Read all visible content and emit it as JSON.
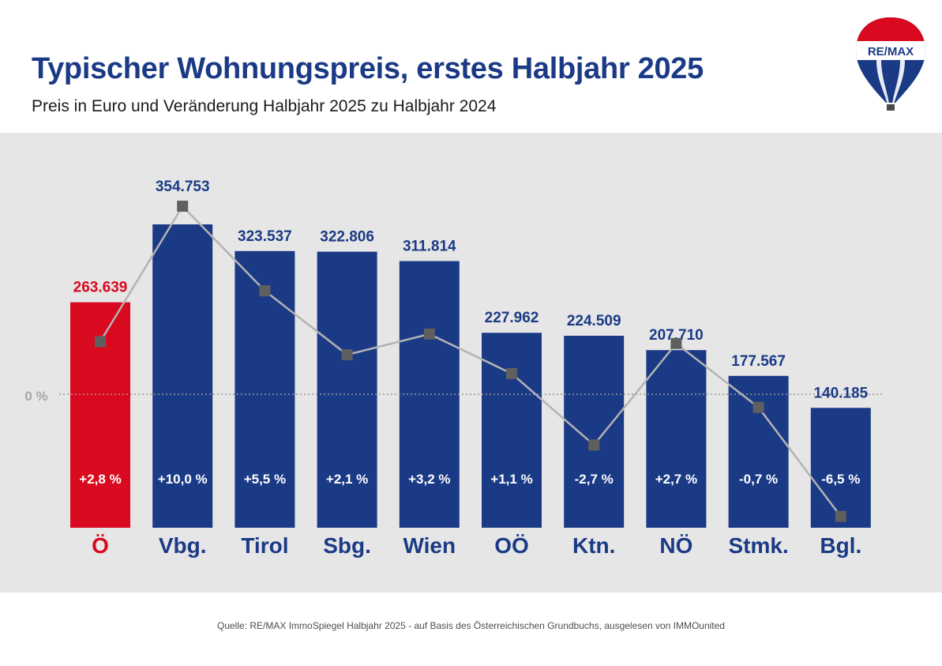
{
  "header": {
    "title": "Typischer Wohnungspreis, erstes Halbjahr 2025",
    "subtitle": "Preis in Euro und Veränderung Halbjahr 2025 zu Halbjahr 2024"
  },
  "logo": {
    "text": "RE/MAX"
  },
  "footer": {
    "source": "Quelle: RE/MAX ImmoSpiegel Halbjahr 2025 - auf Basis des Österreichischen Grundbuchs, ausgelesen von IMMOunited"
  },
  "chart_data": {
    "type": "bar",
    "title": "Typischer Wohnungspreis, erstes Halbjahr 2025",
    "subtitle": "Preis in Euro und Veränderung Halbjahr 2025 zu Halbjahr 2024",
    "categories": [
      "Ö",
      "Vbg.",
      "Tirol",
      "Sbg.",
      "Wien",
      "OÖ",
      "Ktn.",
      "NÖ",
      "Stmk.",
      "Bgl."
    ],
    "price_labels": [
      "263.639",
      "354.753",
      "323.537",
      "322.806",
      "311.814",
      "227.962",
      "224.509",
      "207.710",
      "177.567",
      "140.185"
    ],
    "change_labels": [
      "+2,8 %",
      "+10,0 %",
      "+5,5 %",
      "+2,1 %",
      "+3,2 %",
      "+1,1 %",
      "-2,7 %",
      "+2,7 %",
      "-0,7 %",
      "-6,5 %"
    ],
    "zero_label": "0 %",
    "series": [
      {
        "name": "Preis in Euro",
        "type": "bar",
        "values": [
          263639,
          354753,
          323537,
          322806,
          311814,
          227962,
          224509,
          207710,
          177567,
          140185
        ]
      },
      {
        "name": "Veränderung in %",
        "type": "line",
        "values": [
          2.8,
          10.0,
          5.5,
          2.1,
          3.2,
          1.1,
          -2.7,
          2.7,
          -0.7,
          -6.5
        ]
      }
    ],
    "highlight_index": 0,
    "colors": {
      "bar": "#1b3a86",
      "highlight": "#d9091f",
      "line": "#b3b3b3",
      "marker": "#5f5f5f",
      "zero_line": "#999999",
      "text": "#1b3a86"
    }
  }
}
